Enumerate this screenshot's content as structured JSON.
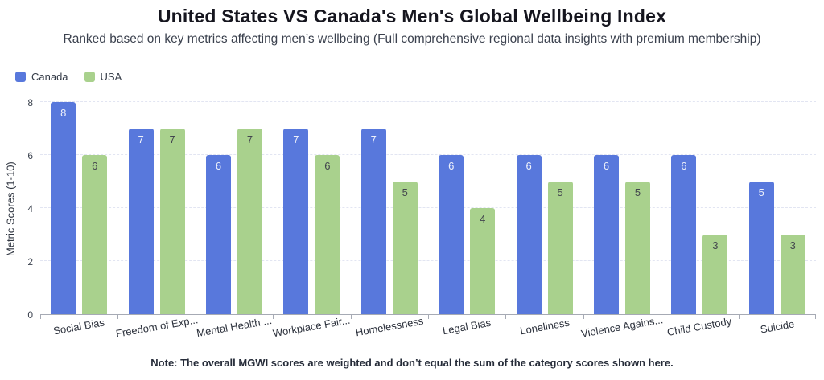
{
  "chart_data": {
    "type": "bar",
    "title": "United States VS Canada's Men's Global Wellbeing Index",
    "subtitle": "Ranked based on key metrics affecting men’s wellbeing (Full comprehensive regional data insights with premium membership)",
    "categories": [
      "Social Bias",
      "Freedom of Exp...",
      "Mental Health ...",
      "Workplace Fair...",
      "Homelessness",
      "Legal Bias",
      "Loneliness",
      "Violence Agains...",
      "Child Custody",
      "Suicide"
    ],
    "series": [
      {
        "name": "Canada",
        "color": "#5878DC",
        "value_label_color": "#eef1fa",
        "values": [
          8,
          7,
          6,
          7,
          7,
          6,
          6,
          6,
          6,
          5
        ]
      },
      {
        "name": "USA",
        "color": "#A9D18D",
        "value_label_color": "#43464e",
        "values": [
          6,
          7,
          7,
          6,
          5,
          4,
          5,
          5,
          3,
          3
        ]
      }
    ],
    "ylabel": "Metric Scores (1-10)",
    "ylim": [
      0,
      8
    ],
    "yticks": [
      0,
      2,
      4,
      6,
      8
    ],
    "grid": "horizontal-dashed",
    "legend_position": "top-left",
    "value_labels": "inside-top",
    "note": "Note: The overall MGWI scores are weighted and don’t equal the sum of the category scores shown here."
  },
  "style_colors": {
    "gridline": "#e2e5f2",
    "axis_line": "#a6aab4",
    "tick_text": "#3d4450",
    "title_text": "#15151e"
  }
}
